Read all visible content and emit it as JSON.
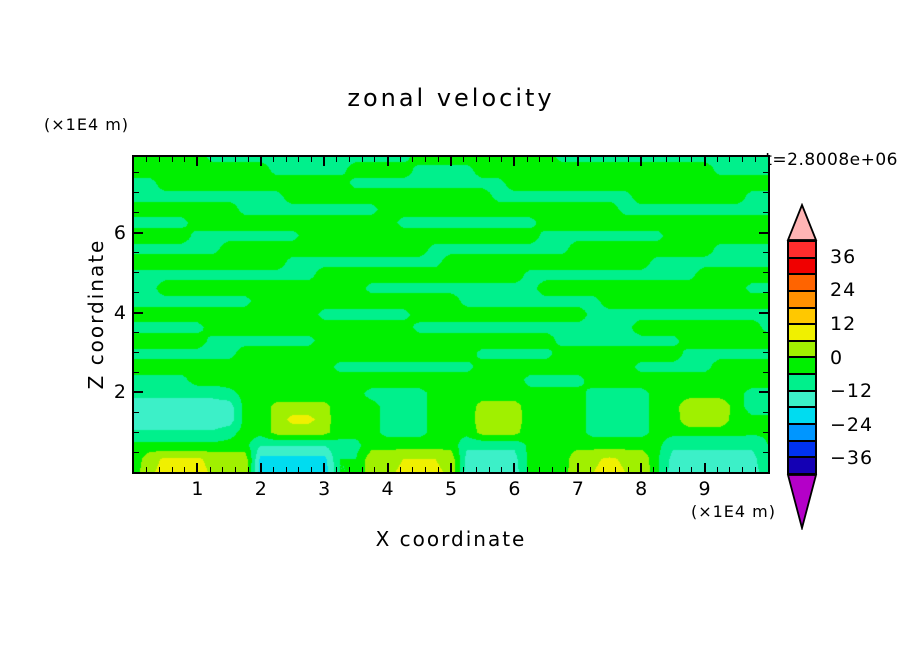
{
  "title": "zonal velocity",
  "timestamp_label": "t=2.8008e+06",
  "x_axis": {
    "label": "X coordinate",
    "units": "(×1E4 m)",
    "major_ticks": [
      1,
      2,
      3,
      4,
      5,
      6,
      7,
      8,
      9
    ],
    "minor_step": 0.2,
    "range": [
      0,
      10
    ]
  },
  "y_axis": {
    "label": "Z coordinate",
    "units": "(×1E4 m)",
    "major_ticks": [
      2,
      4,
      6
    ],
    "minor_step": 0.5,
    "range": [
      0,
      7.9
    ]
  },
  "colorbar": {
    "labels": [
      {
        "text": "36",
        "value": 36
      },
      {
        "text": "24",
        "value": 24
      },
      {
        "text": "12",
        "value": 12
      },
      {
        "text": "0",
        "value": 0
      },
      {
        "text": "−12",
        "value": -12
      },
      {
        "text": "−24",
        "value": -24
      },
      {
        "text": "−36",
        "value": -36
      }
    ],
    "levels": [
      -42,
      -36,
      -30,
      -24,
      -18,
      -12,
      -6,
      0,
      6,
      12,
      18,
      24,
      30,
      36,
      42
    ],
    "colors": [
      "#1400B4",
      "#0032F0",
      "#0096FF",
      "#00DCF0",
      "#3CF0C8",
      "#00F08C",
      "#00F000",
      "#A0F000",
      "#F0F000",
      "#FFC800",
      "#FF9100",
      "#FF6400",
      "#F00000",
      "#FF2D2D"
    ],
    "under_color": "#B400C8",
    "over_color": "#FFB4B4"
  },
  "chart_data": {
    "type": "heatmap",
    "title": "zonal velocity",
    "xlabel": "X coordinate (×1E4 m)",
    "ylabel": "Z coordinate (×1E4 m)",
    "time_label": "t=2.8008e+06",
    "x_range": [
      0,
      10
    ],
    "z_range": [
      0,
      7.9
    ],
    "contour_interval": 6,
    "grid_note": "zonal velocity (m/s), 25 rows from z=7.9 (top) to z=0 (bottom) x 41 cols from x=0 to x=10",
    "values": [
      [
        -3,
        -3,
        -3,
        -3,
        -3,
        -8,
        -8,
        -8,
        -8,
        -8,
        -8,
        -8,
        -8,
        -8,
        -8,
        -8,
        -8,
        -8,
        -3,
        -3,
        -3,
        -3,
        -3,
        -3,
        -3,
        -3,
        -3,
        -8,
        -8,
        -8,
        -8,
        -8,
        -8,
        -8,
        -8,
        -8,
        -8,
        -8,
        -8,
        -8,
        -8
      ],
      [
        -3,
        -3,
        -3,
        -3,
        -3,
        -3,
        -3,
        -3,
        -3,
        -8,
        -8,
        -8,
        -8,
        -8,
        -3,
        -3,
        -3,
        -3,
        -8,
        -8,
        -8,
        -8,
        -3,
        -3,
        -3,
        -3,
        -3,
        -3,
        -3,
        -3,
        -3,
        -3,
        -3,
        -3,
        -3,
        -3,
        -3,
        -8,
        -8,
        -8,
        -8
      ],
      [
        -8,
        -8,
        -3,
        -3,
        -3,
        -3,
        -3,
        -3,
        -3,
        -3,
        -3,
        -3,
        -3,
        -3,
        -8,
        -8,
        -8,
        -8,
        -8,
        -8,
        -8,
        -8,
        -8,
        -8,
        -3,
        -3,
        -3,
        -3,
        -3,
        -3,
        -3,
        -3,
        -3,
        -3,
        -3,
        -3,
        -3,
        -3,
        -3,
        -3,
        -3
      ],
      [
        -8,
        -8,
        -8,
        -8,
        -8,
        -8,
        -8,
        -8,
        -8,
        -8,
        -3,
        -3,
        -3,
        -3,
        -3,
        -3,
        -3,
        -3,
        -3,
        -3,
        -3,
        -3,
        -3,
        -8,
        -8,
        -8,
        -8,
        -8,
        -8,
        -8,
        -8,
        -8,
        -3,
        -3,
        -3,
        -3,
        -3,
        -3,
        -3,
        -8,
        -8
      ],
      [
        -3,
        -3,
        -3,
        -3,
        -3,
        -3,
        -3,
        -8,
        -8,
        -8,
        -8,
        -8,
        -8,
        -8,
        -8,
        -8,
        -3,
        -3,
        -3,
        -3,
        -3,
        -3,
        -3,
        -3,
        -3,
        -3,
        -3,
        -3,
        -3,
        -3,
        -3,
        -8,
        -8,
        -8,
        -8,
        -8,
        -8,
        -8,
        -8,
        -8,
        -8
      ],
      [
        -8,
        -8,
        -8,
        -8,
        -3,
        -3,
        -3,
        -3,
        -3,
        -3,
        -3,
        -3,
        -3,
        -3,
        -3,
        -3,
        -3,
        -8,
        -8,
        -8,
        -8,
        -8,
        -8,
        -8,
        -8,
        -8,
        -3,
        -3,
        -3,
        -3,
        -3,
        -3,
        -3,
        -3,
        -3,
        -3,
        -3,
        -3,
        -3,
        -3,
        -3
      ],
      [
        -3,
        -3,
        -3,
        -3,
        -8,
        -8,
        -8,
        -8,
        -8,
        -8,
        -8,
        -3,
        -3,
        -3,
        -3,
        -3,
        -3,
        -3,
        -3,
        -3,
        -3,
        -3,
        -3,
        -3,
        -3,
        -3,
        -8,
        -8,
        -8,
        -8,
        -8,
        -8,
        -8,
        -8,
        -3,
        -3,
        -3,
        -3,
        -3,
        -3,
        -3
      ],
      [
        -8,
        -8,
        -8,
        -8,
        -8,
        -8,
        -3,
        -3,
        -3,
        -3,
        -3,
        -3,
        -3,
        -3,
        -3,
        -3,
        -3,
        -3,
        -3,
        -8,
        -8,
        -8,
        -8,
        -8,
        -8,
        -8,
        -8,
        -8,
        -3,
        -3,
        -3,
        -3,
        -3,
        -3,
        -3,
        -3,
        -3,
        -8,
        -8,
        -8,
        -8
      ],
      [
        -3,
        -3,
        -3,
        -3,
        -3,
        -3,
        -3,
        -3,
        -3,
        -3,
        -8,
        -8,
        -8,
        -8,
        -8,
        -8,
        -8,
        -8,
        -8,
        -8,
        -3,
        -3,
        -3,
        -3,
        -3,
        -3,
        -3,
        -3,
        -3,
        -3,
        -3,
        -3,
        -3,
        -8,
        -8,
        -8,
        -8,
        -8,
        -8,
        -8,
        -8
      ],
      [
        -8,
        -8,
        -8,
        -8,
        -8,
        -8,
        -8,
        -8,
        -8,
        -8,
        -8,
        -8,
        -3,
        -3,
        -3,
        -3,
        -3,
        -3,
        -3,
        -3,
        -3,
        -3,
        -3,
        -3,
        -3,
        -8,
        -8,
        -8,
        -8,
        -8,
        -8,
        -8,
        -8,
        -8,
        -8,
        -8,
        -3,
        -3,
        -3,
        -3,
        -3
      ],
      [
        -8,
        -8,
        -3,
        -3,
        -3,
        -3,
        -3,
        -3,
        -3,
        -3,
        -3,
        -3,
        -3,
        -3,
        -3,
        -8,
        -8,
        -8,
        -8,
        -8,
        -8,
        -8,
        -8,
        -8,
        -8,
        -8,
        -3,
        -3,
        -3,
        -3,
        -3,
        -3,
        -3,
        -3,
        -3,
        -3,
        -3,
        -3,
        -3,
        -8,
        -8
      ],
      [
        -8,
        -8,
        -8,
        -8,
        -8,
        -8,
        -8,
        -8,
        -3,
        -3,
        -3,
        -3,
        -3,
        -3,
        -3,
        -3,
        -3,
        -3,
        -3,
        -3,
        -3,
        -8,
        -8,
        -8,
        -8,
        -8,
        -8,
        -8,
        -8,
        -8,
        -3,
        -3,
        -3,
        -3,
        -3,
        -3,
        -3,
        -3,
        -3,
        -3,
        -3
      ],
      [
        -3,
        -3,
        -3,
        -3,
        -3,
        -3,
        -3,
        -3,
        -3,
        -3,
        -3,
        -3,
        -8,
        -8,
        -8,
        -8,
        -8,
        -8,
        -3,
        -3,
        -3,
        -3,
        -3,
        -3,
        -3,
        -3,
        -3,
        -3,
        -3,
        -8,
        -8,
        -8,
        -8,
        -8,
        -8,
        -8,
        -8,
        -8,
        -8,
        -8,
        -8
      ],
      [
        -8,
        -8,
        -8,
        -8,
        -8,
        -3,
        -3,
        -3,
        -3,
        -3,
        -3,
        -3,
        -3,
        -3,
        -3,
        -3,
        -3,
        -3,
        -8,
        -8,
        -8,
        -8,
        -8,
        -8,
        -8,
        -8,
        -8,
        -8,
        -8,
        -8,
        -8,
        -8,
        -3,
        -3,
        -3,
        -3,
        -3,
        -3,
        -3,
        -3,
        -8
      ],
      [
        -3,
        -3,
        -3,
        -3,
        -3,
        -8,
        -8,
        -8,
        -8,
        -8,
        -8,
        -8,
        -3,
        -3,
        -3,
        -3,
        -3,
        -3,
        -3,
        -3,
        -3,
        -3,
        -3,
        -3,
        -3,
        -3,
        -3,
        -8,
        -8,
        -8,
        -8,
        -8,
        -8,
        -8,
        -8,
        -3,
        -3,
        -3,
        -3,
        -3,
        -3
      ],
      [
        -8,
        -8,
        -8,
        -8,
        -8,
        -8,
        -8,
        -3,
        -3,
        -3,
        -3,
        -3,
        -3,
        -3,
        -3,
        -3,
        -3,
        -3,
        -3,
        -3,
        -3,
        -3,
        -8,
        -8,
        -8,
        -8,
        -8,
        -3,
        -3,
        -3,
        -3,
        -3,
        -3,
        -3,
        -3,
        -8,
        -8,
        -8,
        -8,
        -8,
        -8
      ],
      [
        -3,
        -3,
        -3,
        -3,
        -3,
        -3,
        -3,
        -3,
        -3,
        -3,
        -3,
        -3,
        -3,
        -8,
        -8,
        -8,
        -8,
        -8,
        -8,
        -8,
        -8,
        -8,
        -3,
        -3,
        -3,
        -3,
        -3,
        -3,
        -3,
        -3,
        -3,
        -3,
        -8,
        -8,
        -8,
        -8,
        -8,
        -3,
        -3,
        -3,
        -3
      ],
      [
        -8,
        -8,
        -8,
        -8,
        -3,
        -3,
        -3,
        -3,
        -3,
        -3,
        -3,
        -3,
        -3,
        -3,
        -3,
        -3,
        -3,
        -3,
        -3,
        -3,
        -3,
        -3,
        -3,
        -3,
        -3,
        -8,
        -8,
        -8,
        -8,
        -3,
        -3,
        -3,
        -3,
        -3,
        -3,
        -3,
        -3,
        -3,
        -3,
        -3,
        -3
      ],
      [
        -10,
        -10,
        -10,
        -10,
        -10,
        -10,
        -8,
        -4,
        -4,
        -4,
        -4,
        -4,
        -4,
        -4,
        -4,
        -8,
        -8,
        -8,
        -8,
        -4,
        -4,
        -4,
        -4,
        -4,
        -4,
        -4,
        -4,
        -4,
        -4,
        -8,
        -8,
        -8,
        -8,
        -4,
        -4,
        -4,
        -4,
        -4,
        -4,
        -8,
        -8
      ],
      [
        -15,
        -15,
        -15,
        -15,
        -15,
        -15,
        -15,
        -4,
        -4,
        2,
        2,
        2,
        2,
        -4,
        -4,
        -4,
        -8,
        -8,
        -8,
        -4,
        -4,
        -4,
        3,
        3,
        3,
        -4,
        -4,
        -4,
        -4,
        -8,
        -8,
        -8,
        -8,
        -4,
        -4,
        6,
        6,
        6,
        -4,
        -8,
        -8
      ],
      [
        -16,
        -16,
        -16,
        -16,
        -16,
        -16,
        -16,
        -4,
        -4,
        2,
        8,
        8,
        3,
        -4,
        -4,
        -4,
        -8,
        -8,
        -8,
        -4,
        -4,
        -4,
        4,
        4,
        4,
        -4,
        -4,
        -4,
        -4,
        -8,
        -8,
        -8,
        -8,
        -4,
        -4,
        5,
        5,
        5,
        -4,
        -5,
        -5
      ],
      [
        -11,
        -11,
        -11,
        -11,
        -11,
        -11,
        -8,
        -4,
        -4,
        2,
        2,
        2,
        2,
        -4,
        -4,
        -4,
        -8,
        -8,
        -8,
        -4,
        -4,
        -4,
        2,
        2,
        2,
        -4,
        -4,
        -4,
        -4,
        -8,
        -8,
        -8,
        -8,
        -4,
        -4,
        -4,
        -4,
        -4,
        -4,
        -5,
        -5
      ],
      [
        -4,
        -4,
        -4,
        -4,
        -4,
        -4,
        -4,
        -4,
        -12,
        -12,
        -12,
        -12,
        -12,
        -8,
        -8,
        -2,
        -2,
        -2,
        -2,
        -2,
        -2,
        -11,
        -11,
        -11,
        -11,
        -4,
        -4,
        -4,
        -2,
        -2,
        -2,
        -2,
        -2,
        -4,
        -11,
        -11,
        -11,
        -11,
        -11,
        -11,
        -6
      ],
      [
        -4,
        4,
        7,
        7,
        7,
        4,
        4,
        4,
        -20,
        -20,
        -20,
        -20,
        -20,
        -6,
        -6,
        4,
        4,
        6,
        6,
        6,
        4,
        -14,
        -14,
        -14,
        -14,
        -4,
        -4,
        -4,
        5,
        5,
        7,
        5,
        5,
        -5,
        -14,
        -14,
        -14,
        -14,
        -14,
        -14,
        -7
      ],
      [
        -3,
        5,
        8,
        8,
        8,
        5,
        5,
        5,
        -22,
        -22,
        -22,
        -22,
        -22,
        -6,
        -6,
        5,
        5,
        7,
        7,
        7,
        5,
        -15,
        -15,
        -15,
        -15,
        -4,
        -4,
        -4,
        6,
        6,
        8,
        6,
        6,
        -5,
        -15,
        -15,
        -15,
        -15,
        -15,
        -15,
        -8
      ]
    ]
  }
}
